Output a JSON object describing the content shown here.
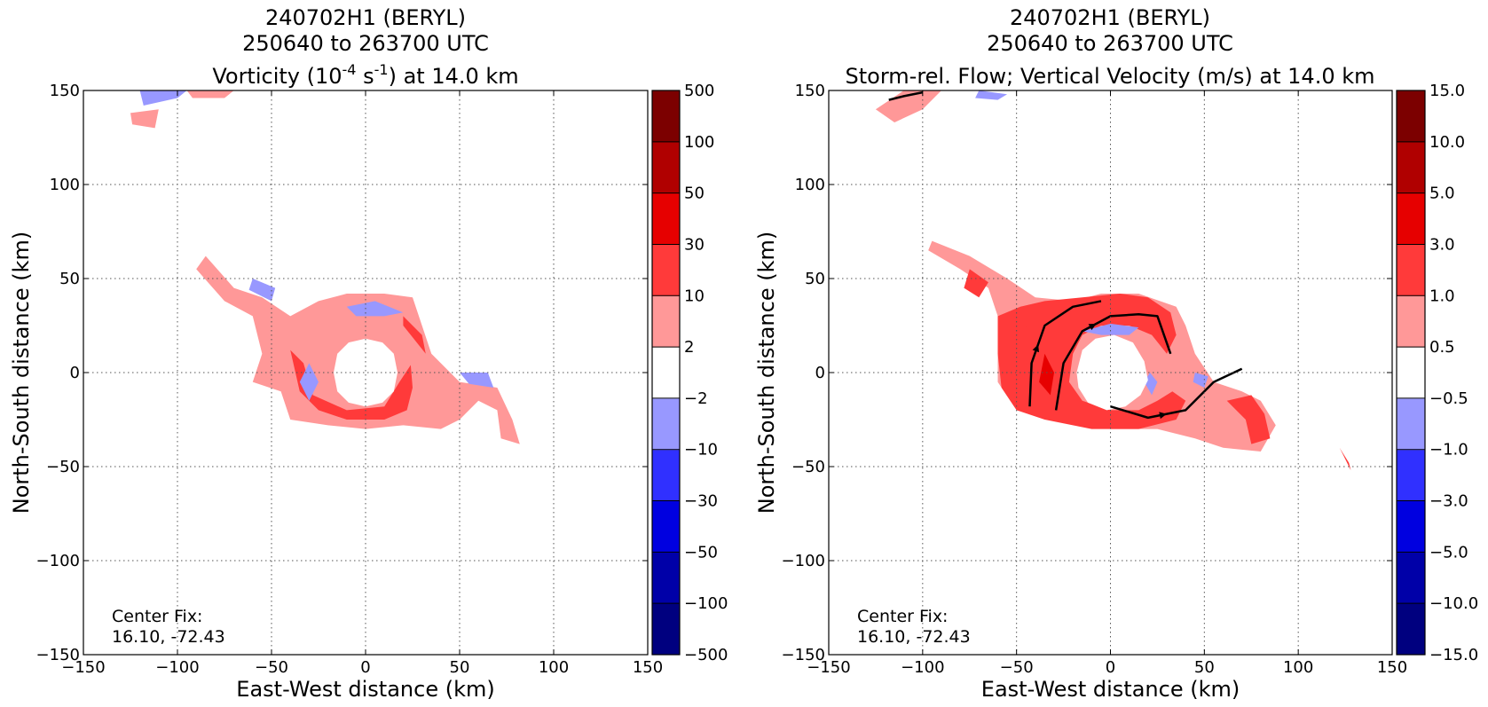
{
  "chart_data": [
    {
      "type": "heatmap",
      "title_lines": [
        "240702H1 (BERYL)",
        "250640 to 263700 UTC"
      ],
      "title_third": {
        "pre": "Vorticity (10",
        "sup1": "-4",
        "mid": " s",
        "sup2": "-1",
        "post": ") at 14.0 km"
      },
      "xlabel": "East-West distance (km)",
      "ylabel": "North-South distance (km)",
      "xlim": [
        -150,
        150
      ],
      "ylim": [
        -150,
        150
      ],
      "xticks": [
        -150,
        -100,
        -50,
        0,
        50,
        100,
        150
      ],
      "yticks": [
        -150,
        -100,
        -50,
        0,
        50,
        100,
        150
      ],
      "grid": true,
      "annotation": [
        "Center Fix:",
        "16.10, -72.43"
      ],
      "colorbar": {
        "levels": [
          "−500",
          "−100",
          "−50",
          "−30",
          "−10",
          "−2",
          "2",
          "10",
          "30",
          "50",
          "100",
          "500"
        ],
        "colors": [
          "#00007f",
          "#0000a8",
          "#0000e0",
          "#3030ff",
          "#9898ff",
          "#ffffff",
          "#ff9898",
          "#ff3a3a",
          "#e60000",
          "#b00000",
          "#7c0000"
        ]
      },
      "regions": [
        {
          "level": 1,
          "points": [
            [
              -90,
              55
            ],
            [
              -75,
              38
            ],
            [
              -60,
              30
            ],
            [
              -55,
              10
            ],
            [
              -60,
              -5
            ],
            [
              -45,
              -10
            ],
            [
              -40,
              -25
            ],
            [
              -20,
              -28
            ],
            [
              0,
              -30
            ],
            [
              20,
              -28
            ],
            [
              40,
              -30
            ],
            [
              50,
              -25
            ],
            [
              60,
              -15
            ],
            [
              70,
              -20
            ],
            [
              72,
              -35
            ],
            [
              82,
              -38
            ],
            [
              78,
              -25
            ],
            [
              70,
              -8
            ],
            [
              50,
              -5
            ],
            [
              35,
              10
            ],
            [
              30,
              25
            ],
            [
              25,
              40
            ],
            [
              10,
              42
            ],
            [
              -10,
              42
            ],
            [
              -25,
              38
            ],
            [
              -40,
              30
            ],
            [
              -55,
              40
            ],
            [
              -70,
              45
            ],
            [
              -85,
              62
            ]
          ]
        },
        {
          "level": 2,
          "points": [
            [
              -40,
              12
            ],
            [
              -35,
              -10
            ],
            [
              -25,
              -20
            ],
            [
              -10,
              -25
            ],
            [
              10,
              -25
            ],
            [
              22,
              -20
            ],
            [
              25,
              -8
            ],
            [
              24,
              4
            ],
            [
              18,
              -5
            ],
            [
              10,
              -18
            ],
            [
              -10,
              -20
            ],
            [
              -28,
              -12
            ],
            [
              -33,
              5
            ]
          ]
        },
        {
          "level": 2,
          "points": [
            [
              20,
              30
            ],
            [
              30,
              20
            ],
            [
              32,
              10
            ],
            [
              28,
              15
            ],
            [
              20,
              25
            ]
          ]
        },
        {
          "level": -1,
          "points": [
            [
              -35,
              -5
            ],
            [
              -30,
              -15
            ],
            [
              -25,
              -5
            ],
            [
              -30,
              5
            ]
          ]
        },
        {
          "level": -1,
          "points": [
            [
              -10,
              35
            ],
            [
              5,
              38
            ],
            [
              20,
              32
            ],
            [
              10,
              30
            ],
            [
              -5,
              30
            ]
          ]
        },
        {
          "level": -1,
          "points": [
            [
              50,
              0
            ],
            [
              65,
              0
            ],
            [
              68,
              -8
            ],
            [
              55,
              -6
            ]
          ]
        },
        {
          "level": -1,
          "points": [
            [
              -60,
              50
            ],
            [
              -48,
              45
            ],
            [
              -50,
              38
            ],
            [
              -62,
              44
            ]
          ]
        },
        {
          "level": -1,
          "points": [
            [
              -120,
              150
            ],
            [
              -95,
              150
            ],
            [
              -100,
              146
            ],
            [
              -118,
              142
            ]
          ]
        },
        {
          "level": 1,
          "points": [
            [
              -125,
              138
            ],
            [
              -110,
              140
            ],
            [
              -112,
              130
            ],
            [
              -124,
              132
            ]
          ]
        },
        {
          "level": 1,
          "points": [
            [
              -95,
              150
            ],
            [
              -70,
              150
            ],
            [
              -75,
              146
            ],
            [
              -92,
              146
            ]
          ]
        },
        {
          "level": 0,
          "points": [
            [
              -17,
              0
            ],
            [
              -15,
              10
            ],
            [
              -9,
              16
            ],
            [
              0,
              18
            ],
            [
              9,
              16
            ],
            [
              15,
              10
            ],
            [
              17,
              0
            ],
            [
              15,
              -10
            ],
            [
              9,
              -16
            ],
            [
              0,
              -18
            ],
            [
              -9,
              -16
            ],
            [
              -15,
              -10
            ]
          ]
        }
      ]
    },
    {
      "type": "heatmap",
      "title_lines": [
        "240702H1 (BERYL)",
        "250640 to 263700 UTC",
        "Storm-rel. Flow; Vertical Velocity (m/s) at 14.0 km"
      ],
      "xlabel": "East-West distance (km)",
      "ylabel": "North-South distance (km)",
      "xlim": [
        -150,
        150
      ],
      "ylim": [
        -150,
        150
      ],
      "xticks": [
        -150,
        -100,
        -50,
        0,
        50,
        100,
        150
      ],
      "yticks": [
        -150,
        -100,
        -50,
        0,
        50,
        100,
        150
      ],
      "grid": true,
      "annotation": [
        "Center Fix:",
        "16.10, -72.43"
      ],
      "colorbar": {
        "levels": [
          "−15.0",
          "−10.0",
          "−5.0",
          "−3.0",
          "−1.0",
          "−0.5",
          "0.5",
          "1.0",
          "3.0",
          "5.0",
          "10.0",
          "15.0"
        ],
        "colors": [
          "#00007f",
          "#0000a8",
          "#0000e0",
          "#3030ff",
          "#9898ff",
          "#ffffff",
          "#ff9898",
          "#ff3a3a",
          "#e60000",
          "#b00000",
          "#7c0000"
        ]
      },
      "regions": [
        {
          "level": 1,
          "points": [
            [
              -97,
              65
            ],
            [
              -80,
              55
            ],
            [
              -65,
              45
            ],
            [
              -60,
              30
            ],
            [
              -60,
              -5
            ],
            [
              -50,
              -20
            ],
            [
              -30,
              -25
            ],
            [
              0,
              -30
            ],
            [
              25,
              -30
            ],
            [
              45,
              -35
            ],
            [
              60,
              -40
            ],
            [
              80,
              -42
            ],
            [
              88,
              -28
            ],
            [
              80,
              -15
            ],
            [
              70,
              -10
            ],
            [
              55,
              -5
            ],
            [
              45,
              10
            ],
            [
              40,
              25
            ],
            [
              35,
              35
            ],
            [
              15,
              42
            ],
            [
              -5,
              42
            ],
            [
              -20,
              38
            ],
            [
              -40,
              40
            ],
            [
              -55,
              50
            ],
            [
              -75,
              62
            ],
            [
              -95,
              70
            ]
          ]
        },
        {
          "level": 2,
          "points": [
            [
              -60,
              30
            ],
            [
              -48,
              35
            ],
            [
              -35,
              38
            ],
            [
              -15,
              40
            ],
            [
              5,
              42
            ],
            [
              20,
              40
            ],
            [
              32,
              32
            ],
            [
              35,
              20
            ],
            [
              30,
              10
            ],
            [
              22,
              20
            ],
            [
              10,
              25
            ],
            [
              -5,
              25
            ],
            [
              -15,
              20
            ],
            [
              -20,
              10
            ],
            [
              -22,
              -5
            ],
            [
              -15,
              -15
            ],
            [
              0,
              -20
            ],
            [
              15,
              -20
            ],
            [
              25,
              -15
            ],
            [
              33,
              -10
            ],
            [
              40,
              -15
            ],
            [
              35,
              -25
            ],
            [
              15,
              -30
            ],
            [
              -10,
              -30
            ],
            [
              -35,
              -25
            ],
            [
              -50,
              -20
            ],
            [
              -58,
              -8
            ],
            [
              -60,
              10
            ]
          ]
        },
        {
          "level": 2,
          "points": [
            [
              -75,
              55
            ],
            [
              -65,
              48
            ],
            [
              -70,
              40
            ],
            [
              -78,
              45
            ]
          ]
        },
        {
          "level": 2,
          "points": [
            [
              -45,
              25
            ],
            [
              -40,
              10
            ],
            [
              -42,
              -5
            ],
            [
              -48,
              5
            ]
          ]
        },
        {
          "level": 2,
          "points": [
            [
              62,
              -15
            ],
            [
              75,
              -12
            ],
            [
              82,
              -22
            ],
            [
              85,
              -35
            ],
            [
              75,
              -38
            ],
            [
              72,
              -25
            ]
          ]
        },
        {
          "level": 3,
          "points": [
            [
              -35,
              10
            ],
            [
              -30,
              0
            ],
            [
              -32,
              -12
            ],
            [
              -38,
              -5
            ]
          ]
        },
        {
          "level": -1,
          "points": [
            [
              -15,
              22
            ],
            [
              0,
              26
            ],
            [
              15,
              24
            ],
            [
              10,
              20
            ],
            [
              -5,
              20
            ]
          ]
        },
        {
          "level": -1,
          "points": [
            [
              18,
              -5
            ],
            [
              22,
              -12
            ],
            [
              25,
              -5
            ],
            [
              21,
              0
            ]
          ]
        },
        {
          "level": -1,
          "points": [
            [
              45,
              0
            ],
            [
              52,
              -2
            ],
            [
              50,
              -8
            ],
            [
              44,
              -5
            ]
          ]
        },
        {
          "level": 1,
          "points": [
            [
              -125,
              140
            ],
            [
              -110,
              150
            ],
            [
              -90,
              150
            ],
            [
              -100,
              140
            ],
            [
              -115,
              133
            ]
          ]
        },
        {
          "level": -1,
          "points": [
            [
              -70,
              150
            ],
            [
              -55,
              148
            ],
            [
              -60,
              145
            ],
            [
              -72,
              146
            ]
          ]
        },
        {
          "level": 2,
          "points": [
            [
              122,
              -40
            ],
            [
              127,
              -48
            ],
            [
              128,
              -52
            ],
            [
              124,
              -44
            ]
          ]
        },
        {
          "level": 0,
          "points": [
            [
              -18,
              0
            ],
            [
              -15,
              12
            ],
            [
              -8,
              18
            ],
            [
              2,
              20
            ],
            [
              12,
              16
            ],
            [
              18,
              6
            ],
            [
              20,
              -4
            ],
            [
              16,
              -12
            ],
            [
              8,
              -18
            ],
            [
              -2,
              -20
            ],
            [
              -12,
              -16
            ],
            [
              -17,
              -8
            ]
          ]
        }
      ],
      "streamlines": [
        {
          "points": [
            [
              -118,
              145
            ],
            [
              -110,
              147
            ],
            [
              -100,
              149
            ]
          ],
          "arrow": false
        },
        {
          "points": [
            [
              -43,
              -18
            ],
            [
              -42,
              5
            ],
            [
              -35,
              25
            ],
            [
              -20,
              35
            ],
            [
              -5,
              38
            ]
          ],
          "arrow": true
        },
        {
          "points": [
            [
              -29,
              -20
            ],
            [
              -25,
              5
            ],
            [
              -15,
              22
            ],
            [
              0,
              30
            ],
            [
              15,
              31
            ],
            [
              25,
              30
            ],
            [
              32,
              10
            ]
          ],
          "arrow": true
        },
        {
          "points": [
            [
              0,
              -18
            ],
            [
              20,
              -24
            ],
            [
              40,
              -20
            ],
            [
              55,
              -5
            ],
            [
              70,
              2
            ]
          ],
          "arrow": true
        }
      ]
    }
  ]
}
